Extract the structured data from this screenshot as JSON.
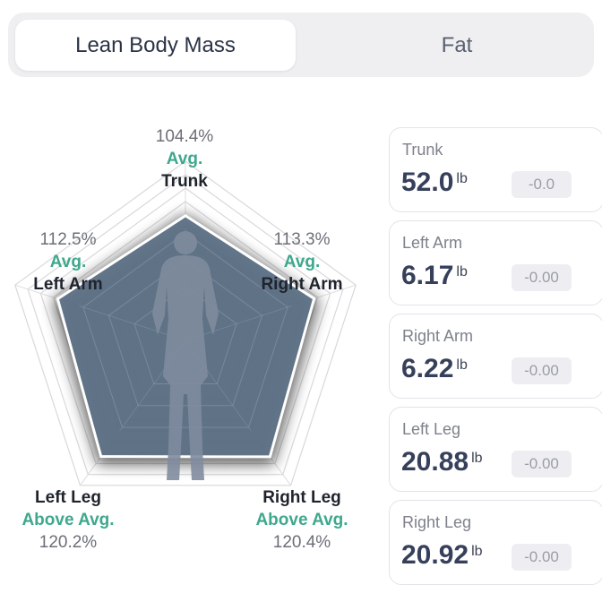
{
  "tabs": [
    {
      "label": "Lean Body Mass",
      "active": true
    },
    {
      "label": "Fat",
      "active": false
    }
  ],
  "radar": {
    "labels": {
      "trunk": {
        "pct": "104.4%",
        "status": "Avg.",
        "part": "Trunk"
      },
      "left_arm": {
        "pct": "112.5%",
        "status": "Avg.",
        "part": "Left Arm"
      },
      "right_arm": {
        "pct": "113.3%",
        "status": "Avg.",
        "part": "Right Arm"
      },
      "left_leg": {
        "part": "Left Leg",
        "status": "Above Avg.",
        "pct": "120.2%"
      },
      "right_leg": {
        "part": "Right Leg",
        "status": "Above Avg.",
        "pct": "120.4%"
      }
    },
    "colors": {
      "fill": "#5c7088",
      "status_green": "#3ea88d",
      "grid": "#d7d7d9"
    }
  },
  "chart_data": {
    "type": "radar",
    "axes": [
      "Trunk",
      "Right Arm",
      "Right Leg",
      "Left Leg",
      "Left Arm"
    ],
    "values": [
      104.4,
      113.3,
      120.4,
      120.2,
      112.5
    ]
  },
  "segments": [
    {
      "name": "Trunk",
      "value": "52.0",
      "unit": "lb",
      "delta": "-0.0"
    },
    {
      "name": "Left Arm",
      "value": "6.17",
      "unit": "lb",
      "delta": "-0.00"
    },
    {
      "name": "Right Arm",
      "value": "6.22",
      "unit": "lb",
      "delta": "-0.00"
    },
    {
      "name": "Left Leg",
      "value": "20.88",
      "unit": "lb",
      "delta": "-0.00"
    },
    {
      "name": "Right Leg",
      "value": "20.92",
      "unit": "lb",
      "delta": "-0.00"
    }
  ]
}
